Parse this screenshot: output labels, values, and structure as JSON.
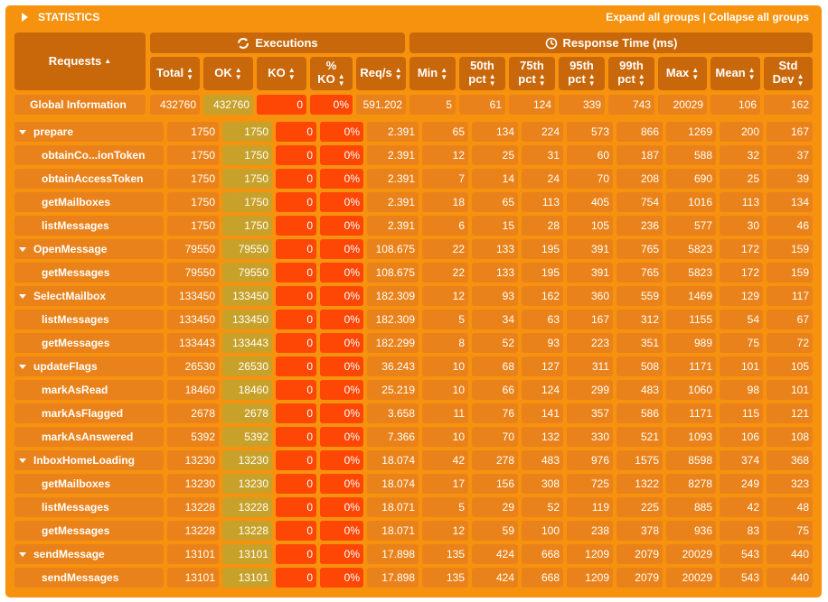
{
  "panel": {
    "title": "STATISTICS",
    "expand_label": "Expand all groups",
    "separator": " | ",
    "collapse_label": "Collapse all groups"
  },
  "groups": {
    "executions": "Executions",
    "response_time": "Response Time (ms)"
  },
  "columns": {
    "requests": "Requests",
    "total": "Total",
    "ok": "OK",
    "ko": "KO",
    "pct_ko_line1": "%",
    "pct_ko_line2": "KO",
    "reqs": "Req/s",
    "min": "Min",
    "p50_line1": "50th",
    "p50_line2": "pct",
    "p75_line1": "75th",
    "p75_line2": "pct",
    "p95_line1": "95th",
    "p95_line2": "pct",
    "p99_line1": "99th",
    "p99_line2": "pct",
    "max": "Max",
    "mean": "Mean",
    "std_line1": "Std",
    "std_line2": "Dev"
  },
  "global": {
    "name": "Global Information",
    "total": "432760",
    "ok": "432760",
    "ko": "0",
    "pct_ko": "0%",
    "reqs": "591.202",
    "min": "5",
    "p50": "61",
    "p75": "124",
    "p95": "339",
    "p99": "743",
    "max": "20029",
    "mean": "106",
    "std": "162"
  },
  "rows": [
    {
      "name": "prepare",
      "group": true,
      "total": "1750",
      "ok": "1750",
      "ko": "0",
      "pct_ko": "0%",
      "reqs": "2.391",
      "min": "65",
      "p50": "134",
      "p75": "224",
      "p95": "573",
      "p99": "866",
      "max": "1269",
      "mean": "200",
      "std": "167"
    },
    {
      "name": "obtainCo...ionToken",
      "group": false,
      "total": "1750",
      "ok": "1750",
      "ko": "0",
      "pct_ko": "0%",
      "reqs": "2.391",
      "min": "12",
      "p50": "25",
      "p75": "31",
      "p95": "60",
      "p99": "187",
      "max": "588",
      "mean": "32",
      "std": "37"
    },
    {
      "name": "obtainAccessToken",
      "group": false,
      "total": "1750",
      "ok": "1750",
      "ko": "0",
      "pct_ko": "0%",
      "reqs": "2.391",
      "min": "7",
      "p50": "14",
      "p75": "24",
      "p95": "70",
      "p99": "208",
      "max": "690",
      "mean": "25",
      "std": "39"
    },
    {
      "name": "getMailboxes",
      "group": false,
      "total": "1750",
      "ok": "1750",
      "ko": "0",
      "pct_ko": "0%",
      "reqs": "2.391",
      "min": "18",
      "p50": "65",
      "p75": "113",
      "p95": "405",
      "p99": "754",
      "max": "1016",
      "mean": "113",
      "std": "134"
    },
    {
      "name": "listMessages",
      "group": false,
      "total": "1750",
      "ok": "1750",
      "ko": "0",
      "pct_ko": "0%",
      "reqs": "2.391",
      "min": "6",
      "p50": "15",
      "p75": "28",
      "p95": "105",
      "p99": "236",
      "max": "577",
      "mean": "30",
      "std": "46"
    },
    {
      "name": "OpenMessage",
      "group": true,
      "total": "79550",
      "ok": "79550",
      "ko": "0",
      "pct_ko": "0%",
      "reqs": "108.675",
      "min": "22",
      "p50": "133",
      "p75": "195",
      "p95": "391",
      "p99": "765",
      "max": "5823",
      "mean": "172",
      "std": "159"
    },
    {
      "name": "getMessages",
      "group": false,
      "total": "79550",
      "ok": "79550",
      "ko": "0",
      "pct_ko": "0%",
      "reqs": "108.675",
      "min": "22",
      "p50": "133",
      "p75": "195",
      "p95": "391",
      "p99": "765",
      "max": "5823",
      "mean": "172",
      "std": "159"
    },
    {
      "name": "SelectMailbox",
      "group": true,
      "total": "133450",
      "ok": "133450",
      "ko": "0",
      "pct_ko": "0%",
      "reqs": "182.309",
      "min": "12",
      "p50": "93",
      "p75": "162",
      "p95": "360",
      "p99": "559",
      "max": "1469",
      "mean": "129",
      "std": "117"
    },
    {
      "name": "listMessages",
      "group": false,
      "total": "133450",
      "ok": "133450",
      "ko": "0",
      "pct_ko": "0%",
      "reqs": "182.309",
      "min": "5",
      "p50": "34",
      "p75": "63",
      "p95": "167",
      "p99": "312",
      "max": "1155",
      "mean": "54",
      "std": "67"
    },
    {
      "name": "getMessages",
      "group": false,
      "total": "133443",
      "ok": "133443",
      "ko": "0",
      "pct_ko": "0%",
      "reqs": "182.299",
      "min": "8",
      "p50": "52",
      "p75": "93",
      "p95": "223",
      "p99": "351",
      "max": "989",
      "mean": "75",
      "std": "72"
    },
    {
      "name": "updateFlags",
      "group": true,
      "total": "26530",
      "ok": "26530",
      "ko": "0",
      "pct_ko": "0%",
      "reqs": "36.243",
      "min": "10",
      "p50": "68",
      "p75": "127",
      "p95": "311",
      "p99": "508",
      "max": "1171",
      "mean": "101",
      "std": "105"
    },
    {
      "name": "markAsRead",
      "group": false,
      "total": "18460",
      "ok": "18460",
      "ko": "0",
      "pct_ko": "0%",
      "reqs": "25.219",
      "min": "10",
      "p50": "66",
      "p75": "124",
      "p95": "299",
      "p99": "483",
      "max": "1060",
      "mean": "98",
      "std": "101"
    },
    {
      "name": "markAsFlagged",
      "group": false,
      "total": "2678",
      "ok": "2678",
      "ko": "0",
      "pct_ko": "0%",
      "reqs": "3.658",
      "min": "11",
      "p50": "76",
      "p75": "141",
      "p95": "357",
      "p99": "586",
      "max": "1171",
      "mean": "115",
      "std": "121"
    },
    {
      "name": "markAsAnswered",
      "group": false,
      "total": "5392",
      "ok": "5392",
      "ko": "0",
      "pct_ko": "0%",
      "reqs": "7.366",
      "min": "10",
      "p50": "70",
      "p75": "132",
      "p95": "330",
      "p99": "521",
      "max": "1093",
      "mean": "106",
      "std": "108"
    },
    {
      "name": "InboxHomeLoading",
      "group": true,
      "total": "13230",
      "ok": "13230",
      "ko": "0",
      "pct_ko": "0%",
      "reqs": "18.074",
      "min": "42",
      "p50": "278",
      "p75": "483",
      "p95": "976",
      "p99": "1575",
      "max": "8598",
      "mean": "374",
      "std": "368"
    },
    {
      "name": "getMailboxes",
      "group": false,
      "total": "13230",
      "ok": "13230",
      "ko": "0",
      "pct_ko": "0%",
      "reqs": "18.074",
      "min": "17",
      "p50": "156",
      "p75": "308",
      "p95": "725",
      "p99": "1322",
      "max": "8278",
      "mean": "249",
      "std": "323"
    },
    {
      "name": "listMessages",
      "group": false,
      "total": "13228",
      "ok": "13228",
      "ko": "0",
      "pct_ko": "0%",
      "reqs": "18.071",
      "min": "5",
      "p50": "29",
      "p75": "52",
      "p95": "119",
      "p99": "225",
      "max": "885",
      "mean": "42",
      "std": "48"
    },
    {
      "name": "getMessages",
      "group": false,
      "total": "13228",
      "ok": "13228",
      "ko": "0",
      "pct_ko": "0%",
      "reqs": "18.071",
      "min": "12",
      "p50": "59",
      "p75": "100",
      "p95": "238",
      "p99": "378",
      "max": "936",
      "mean": "83",
      "std": "75"
    },
    {
      "name": "sendMessage",
      "group": true,
      "total": "13101",
      "ok": "13101",
      "ko": "0",
      "pct_ko": "0%",
      "reqs": "17.898",
      "min": "135",
      "p50": "424",
      "p75": "668",
      "p95": "1209",
      "p99": "2079",
      "max": "20029",
      "mean": "543",
      "std": "440"
    },
    {
      "name": "sendMessages",
      "group": false,
      "total": "13101",
      "ok": "13101",
      "ko": "0",
      "pct_ko": "0%",
      "reqs": "17.898",
      "min": "135",
      "p50": "424",
      "p75": "668",
      "p95": "1209",
      "p99": "2079",
      "max": "20029",
      "mean": "543",
      "std": "440"
    }
  ]
}
